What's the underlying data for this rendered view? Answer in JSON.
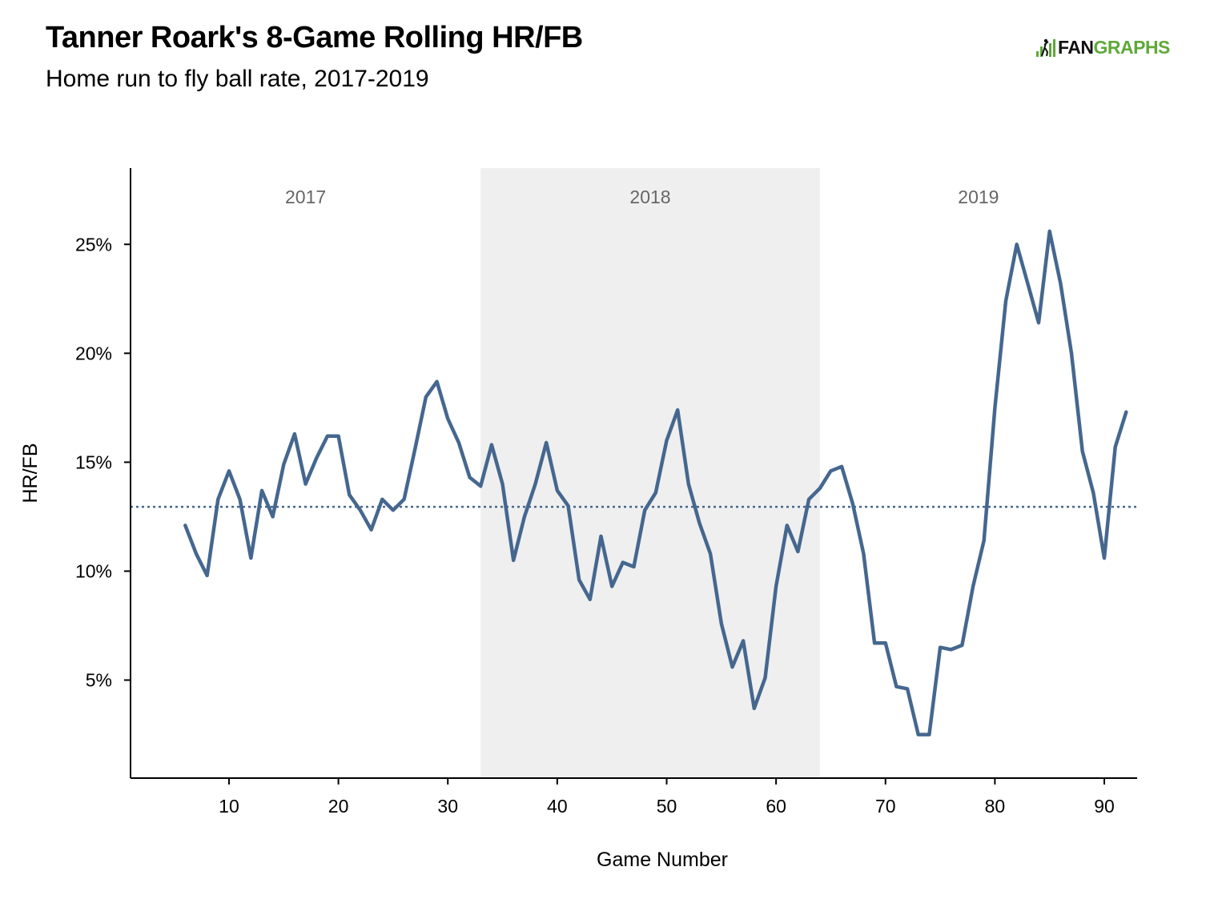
{
  "header": {
    "title": "Tanner Roark's 8-Game Rolling HR/FB",
    "subtitle": "Home run to fly ball rate, 2017-2019"
  },
  "logo": {
    "text_fan": "FAN",
    "text_graphs": "GRAPHS",
    "icon": "fangraphs-logo-icon"
  },
  "colors": {
    "line": "#45678f",
    "band": "#efefef",
    "average": "#45678f",
    "logo_green": "#5fa83a"
  },
  "chart_data": {
    "type": "line",
    "title": "Tanner Roark's 8-Game Rolling HR/FB",
    "subtitle": "Home run to fly ball rate, 2017-2019",
    "xlabel": "Game Number",
    "ylabel": "HR/FB",
    "xlim": [
      1,
      93
    ],
    "ylim": [
      0.5,
      28.5
    ],
    "x_ticks": [
      10,
      20,
      30,
      40,
      50,
      60,
      70,
      80,
      90
    ],
    "x_tick_labels": [
      "10",
      "20",
      "30",
      "40",
      "50",
      "60",
      "70",
      "80",
      "90"
    ],
    "y_ticks": [
      5,
      10,
      15,
      20,
      25
    ],
    "y_tick_labels": [
      "5%",
      "10%",
      "15%",
      "20%",
      "25%"
    ],
    "average_line": 12.95,
    "grid": false,
    "seasons": [
      {
        "label": "2017",
        "start": 1,
        "end": 33,
        "shaded": false
      },
      {
        "label": "2018",
        "start": 33,
        "end": 64,
        "shaded": true
      },
      {
        "label": "2019",
        "start": 64,
        "end": 93,
        "shaded": false
      }
    ],
    "series": [
      {
        "x": [
          6,
          7,
          8,
          9,
          10,
          11,
          12,
          13,
          14,
          15,
          16,
          17,
          18,
          19,
          20,
          21,
          22,
          23,
          24,
          25,
          26,
          27,
          28,
          29,
          30,
          31,
          32,
          33,
          34,
          35,
          36,
          37,
          38,
          39,
          40,
          41,
          42,
          43,
          44,
          45,
          46,
          47,
          48,
          49,
          50,
          51,
          52,
          53,
          54,
          55,
          56,
          57,
          58,
          59,
          60,
          61,
          62,
          63,
          64,
          65,
          66,
          67,
          68,
          69,
          70,
          71,
          72,
          73,
          74,
          75,
          76,
          77,
          78,
          79,
          80,
          81,
          82,
          83,
          84,
          85,
          86,
          87,
          88,
          89,
          90,
          91,
          92
        ],
        "values": [
          12.1,
          10.8,
          9.8,
          13.3,
          14.6,
          13.3,
          10.6,
          13.7,
          12.5,
          14.9,
          16.3,
          14.0,
          15.2,
          16.2,
          16.2,
          13.5,
          12.8,
          11.9,
          13.3,
          12.8,
          13.3,
          15.6,
          18.0,
          18.7,
          17.0,
          15.9,
          14.3,
          13.9,
          15.8,
          14.0,
          10.5,
          12.5,
          14.0,
          15.9,
          13.7,
          13.0,
          9.6,
          8.7,
          11.6,
          9.3,
          10.4,
          10.2,
          12.8,
          13.6,
          16.0,
          17.4,
          14.0,
          12.2,
          10.8,
          7.6,
          5.6,
          6.8,
          3.7,
          5.1,
          9.3,
          12.1,
          10.9,
          13.3,
          13.8,
          14.6,
          14.8,
          13.1,
          10.8,
          6.7,
          6.7,
          4.7,
          4.6,
          2.5,
          2.5,
          6.5,
          6.4,
          6.6,
          9.3,
          11.4,
          17.5,
          22.4,
          25.0,
          23.2,
          21.4,
          25.6,
          23.2,
          20.0,
          15.5,
          13.6,
          10.6,
          15.7,
          17.3
        ]
      }
    ]
  }
}
